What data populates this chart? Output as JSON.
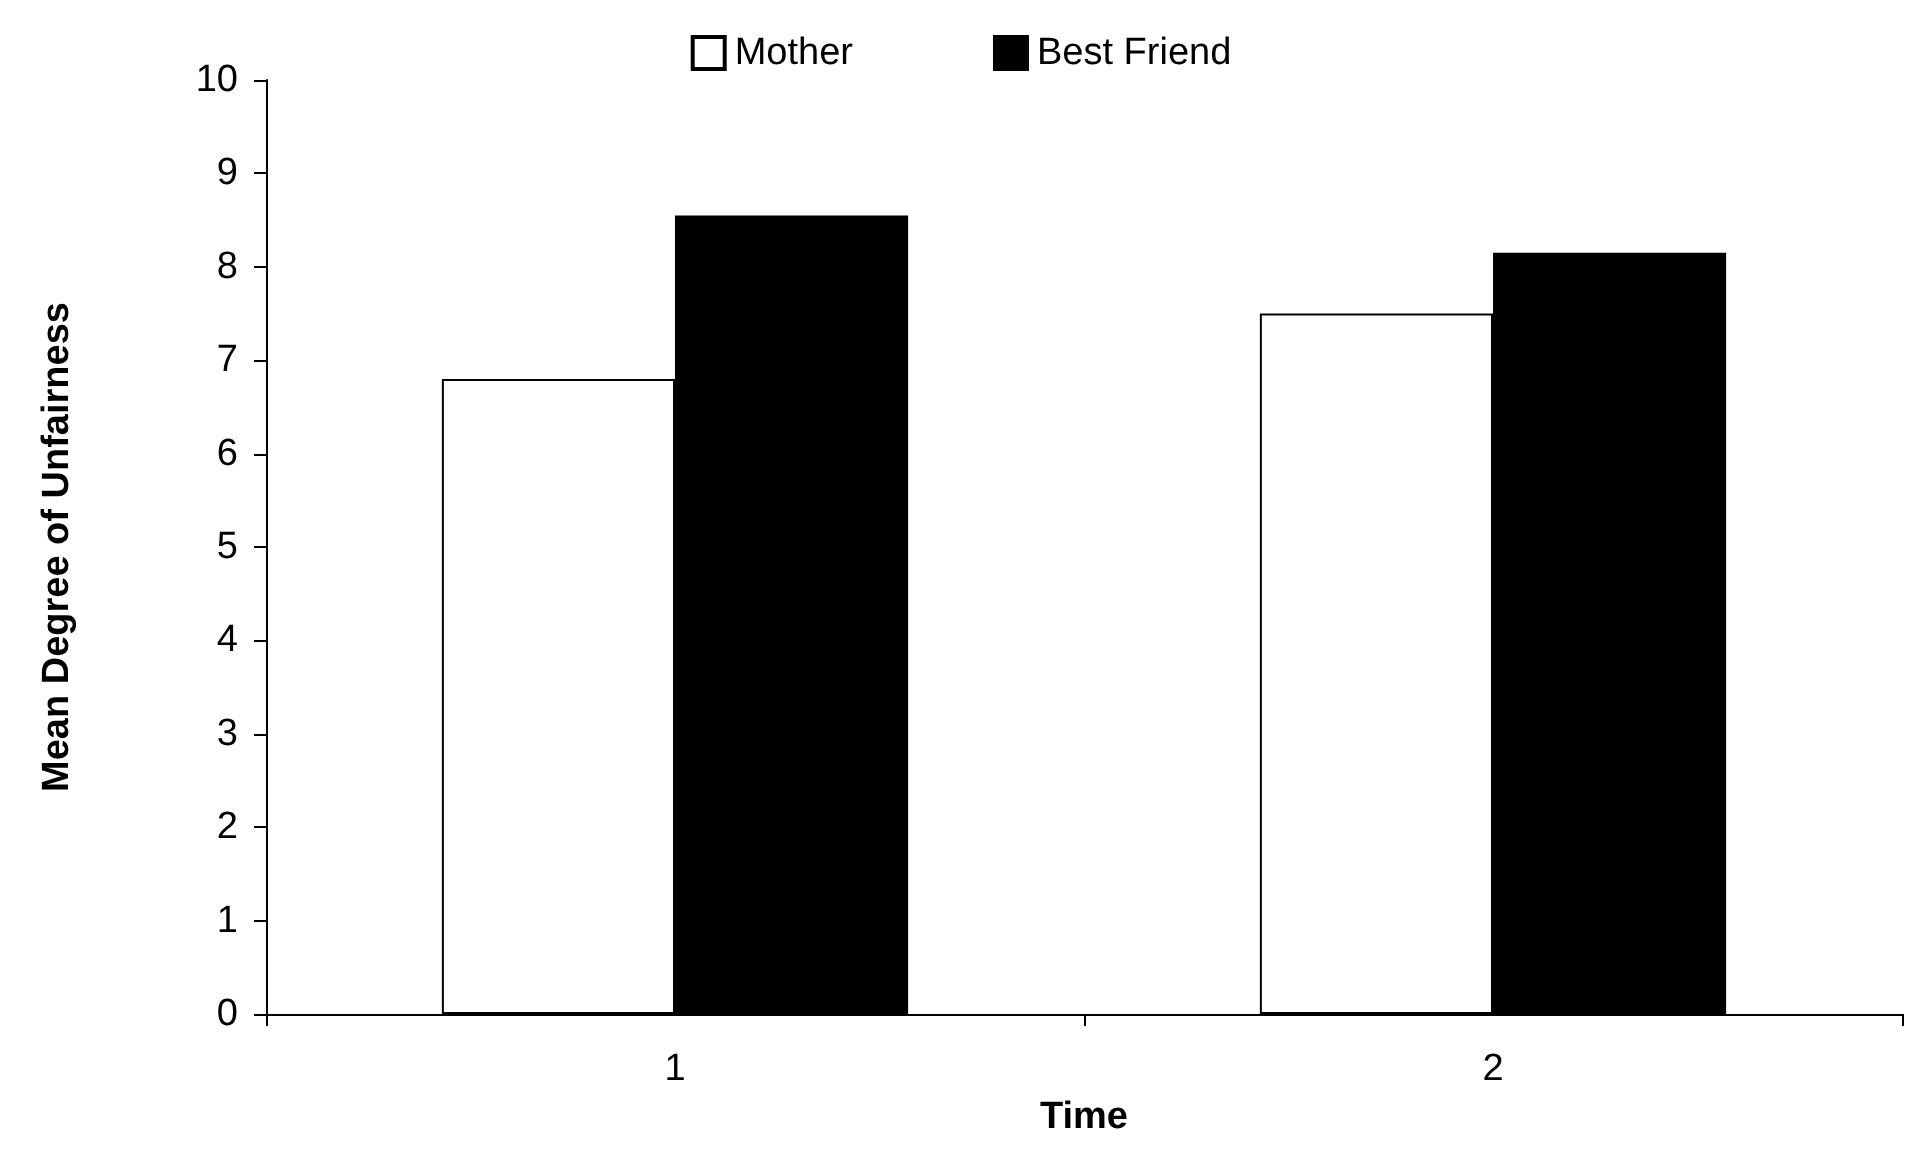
{
  "chart_data": {
    "type": "bar",
    "xlabel": "Time",
    "ylabel": "Mean Degree of Unfairness",
    "categories": [
      "1",
      "2"
    ],
    "series": [
      {
        "name": "Mother",
        "color": "#ffffff",
        "values": [
          6.8,
          7.5
        ]
      },
      {
        "name": "Best Friend",
        "color": "#000000",
        "values": [
          8.55,
          8.15
        ]
      }
    ],
    "ylim": [
      0,
      10
    ],
    "yticks": [
      0,
      1,
      2,
      3,
      4,
      5,
      6,
      7,
      8,
      9,
      10
    ],
    "grid": false,
    "legend": "top"
  }
}
